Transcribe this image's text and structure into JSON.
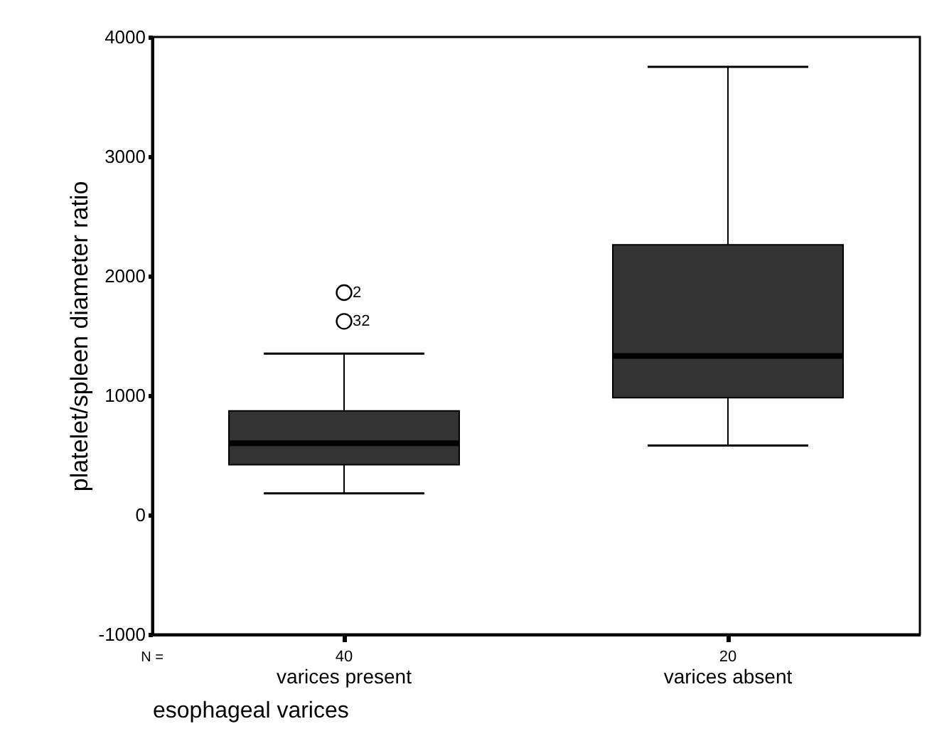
{
  "chart_data": {
    "type": "box",
    "ylabel": "platelet/spleen diameter ratio",
    "xlabel": "esophageal varices",
    "categories": [
      "varices present",
      "varices absent"
    ],
    "boxes": [
      {
        "low": 180,
        "q1": 420,
        "median": 600,
        "q3": 870,
        "high": 1350,
        "outliers": [
          1860,
          1620
        ]
      },
      {
        "low": 580,
        "q1": 980,
        "median": 1330,
        "q3": 2260,
        "high": 3750
      }
    ],
    "color": "#333333",
    "ylim": [
      -1000,
      4000
    ],
    "yticks": [
      -1000,
      0,
      1000,
      2000,
      3000,
      4000
    ],
    "grid": false,
    "annotations": [
      "N =",
      "40",
      "20",
      "2",
      "32"
    ]
  }
}
